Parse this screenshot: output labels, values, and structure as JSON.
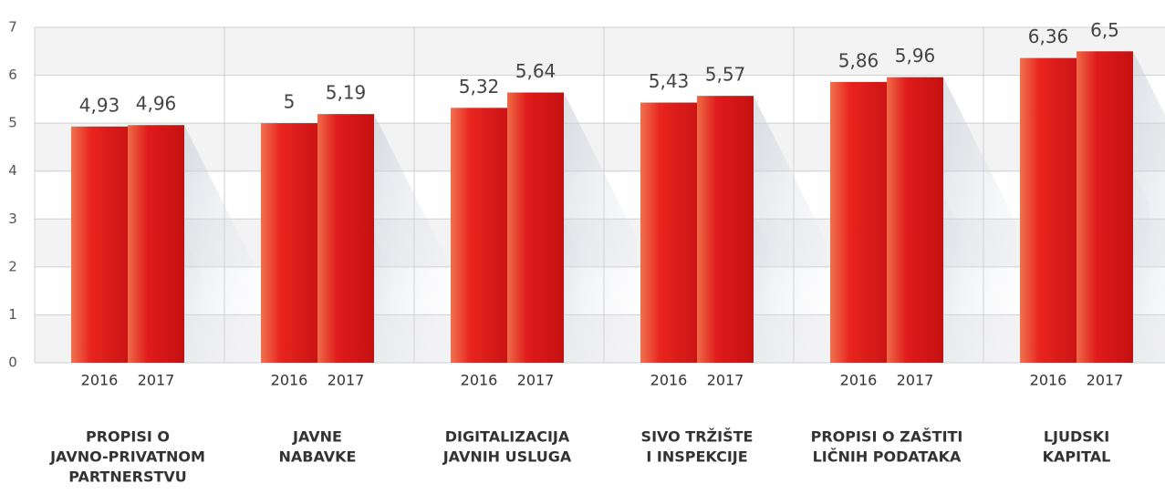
{
  "chart_data": {
    "type": "bar",
    "categories": [
      [
        "PROPISI O",
        "JAVNO-PRIVATNOM",
        "PARTNERSTVU"
      ],
      [
        "JAVNE",
        "NABAVKE"
      ],
      [
        "DIGITALIZACIJA",
        "JAVNIH USLUGA"
      ],
      [
        "SIVO TRŽIŠTE",
        "I INSPEKCIJE"
      ],
      [
        "PROPISI O ZAŠTITI",
        "LIČNIH PODATAKA"
      ],
      [
        "LJUDSKI",
        "KAPITAL"
      ]
    ],
    "series": [
      {
        "name": "2016",
        "color": "#e01b1b",
        "values": [
          4.93,
          5,
          5.32,
          5.43,
          5.86,
          6.36
        ],
        "value_labels": [
          "4,93",
          "5",
          "5,32",
          "5,43",
          "5,86",
          "6,36"
        ]
      },
      {
        "name": "2017",
        "color": "#d81818",
        "values": [
          4.96,
          5.19,
          5.64,
          5.57,
          5.96,
          6.5
        ],
        "value_labels": [
          "4,96",
          "5,19",
          "5,64",
          "5,57",
          "5,96",
          "6,5"
        ]
      }
    ],
    "ylim": [
      0,
      7
    ],
    "yticks": [
      0,
      1,
      2,
      3,
      4,
      5,
      6,
      7
    ],
    "grid": true
  }
}
